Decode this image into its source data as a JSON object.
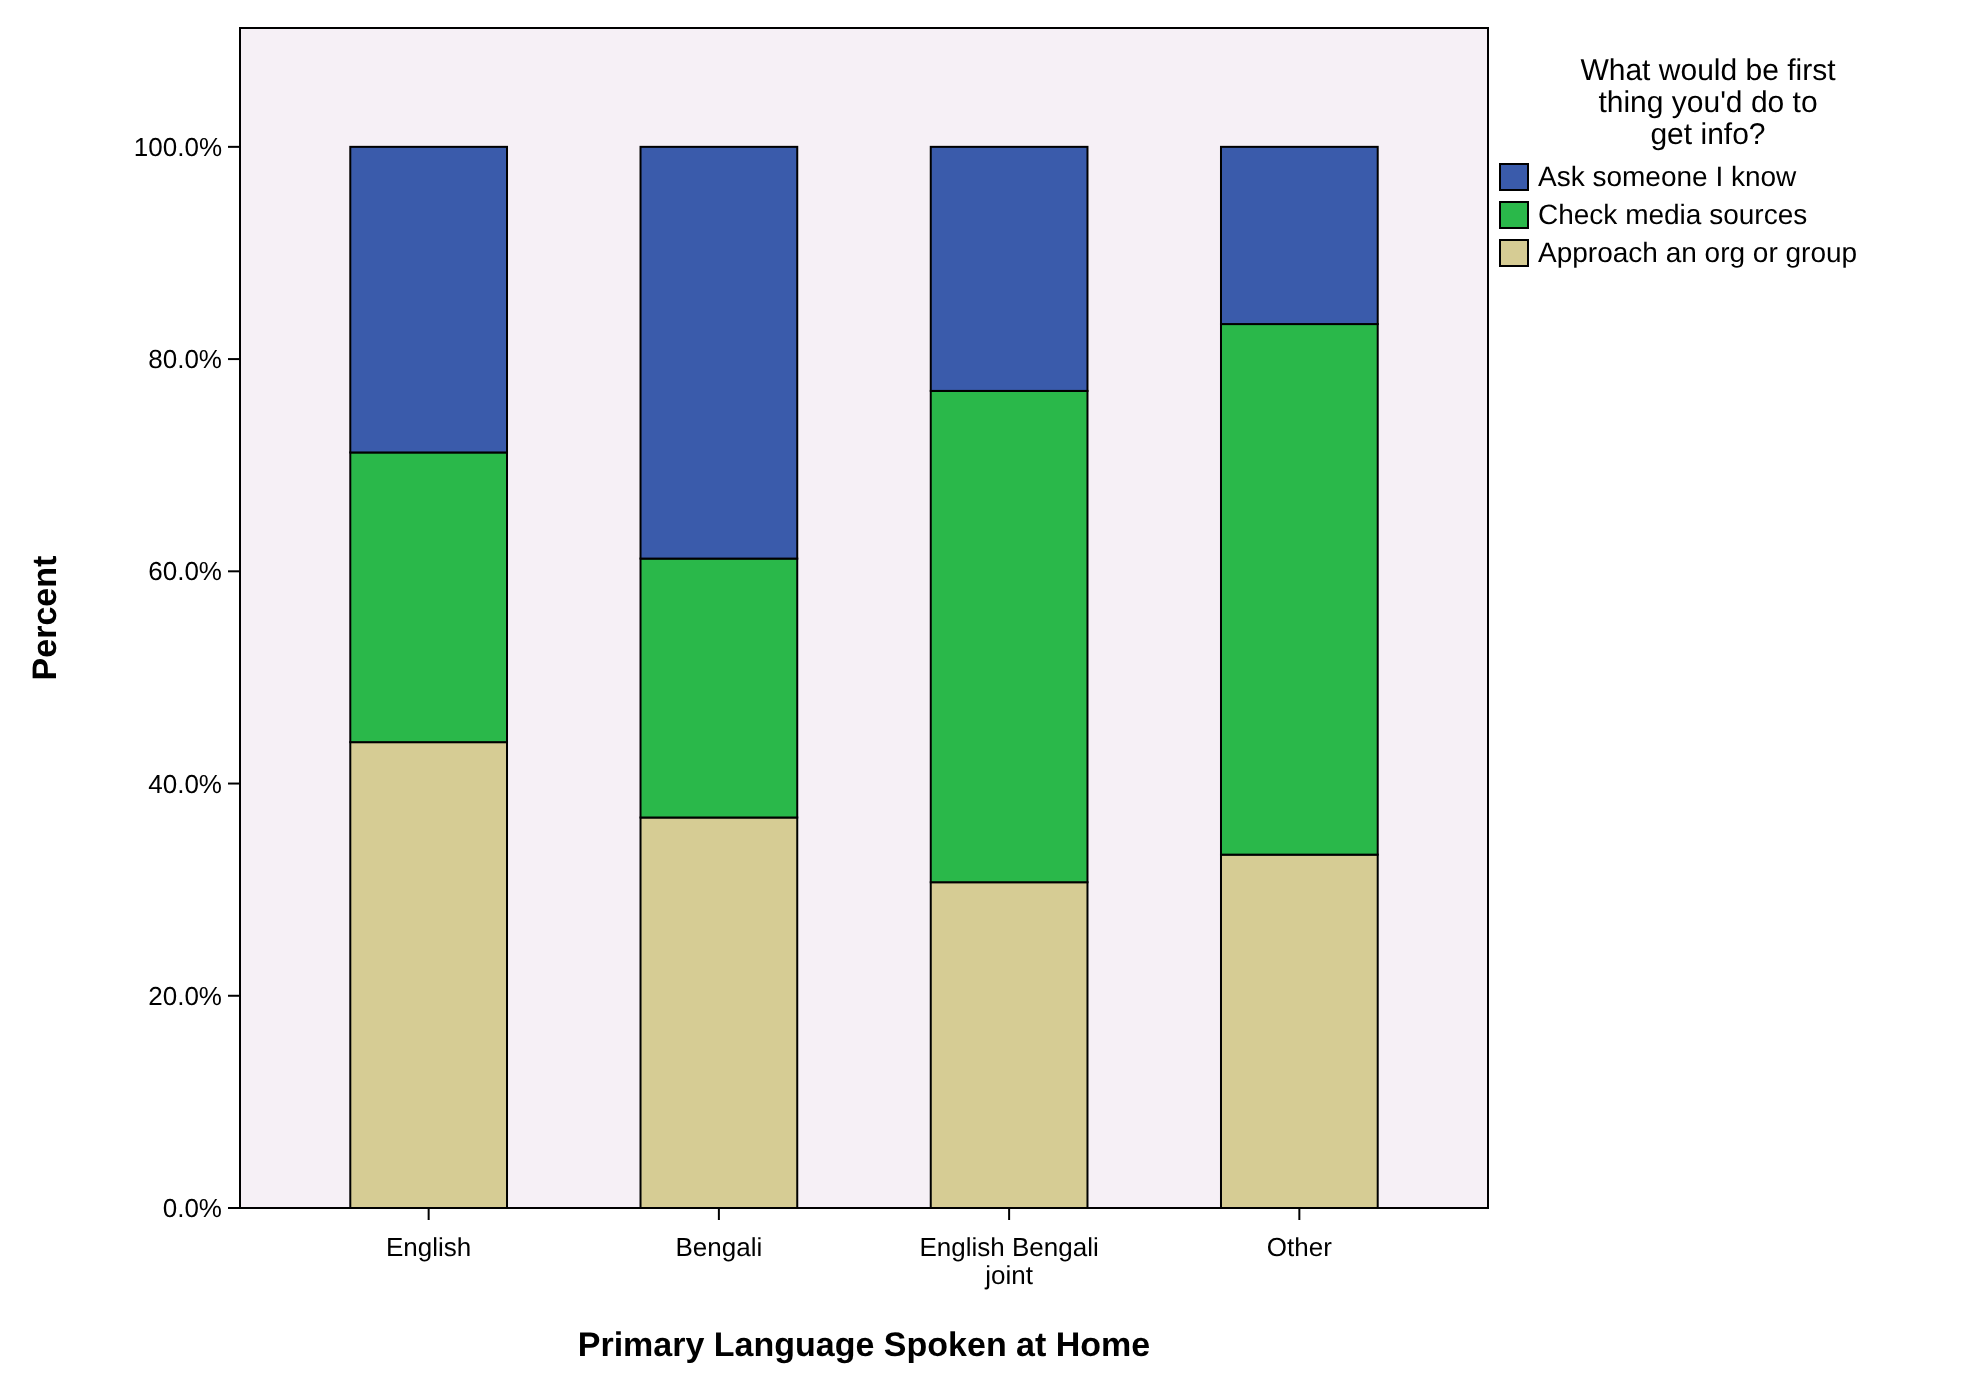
{
  "chart_data": {
    "type": "bar",
    "stacked": true,
    "xlabel": "Primary Language Spoken at Home",
    "ylabel": "Percent",
    "legend_title": "What would be first thing you'd do to get info?",
    "legend": "top right",
    "grid": false,
    "categories": [
      "English",
      "Bengali",
      "English Bengali joint",
      "Other"
    ],
    "ylim": [
      0,
      111.2
    ],
    "yticks": [
      {
        "value": 0,
        "label": "0.0%"
      },
      {
        "value": 20,
        "label": "20.0%"
      },
      {
        "value": 40,
        "label": "40.0%"
      },
      {
        "value": 60,
        "label": "60.0%"
      },
      {
        "value": 80,
        "label": "80.0%"
      },
      {
        "value": 100,
        "label": "100.0%"
      }
    ],
    "series": [
      {
        "name": "Approach an org or group",
        "color": "#d6cc94",
        "values": [
          43.9,
          36.8,
          30.7,
          33.3
        ]
      },
      {
        "name": "Check media sources",
        "color": "#2ab84a",
        "values": [
          27.3,
          24.4,
          46.3,
          50.0
        ]
      },
      {
        "name": "Ask someone I know",
        "color": "#3a5bab",
        "values": [
          28.8,
          38.8,
          23.0,
          16.7
        ]
      }
    ]
  }
}
